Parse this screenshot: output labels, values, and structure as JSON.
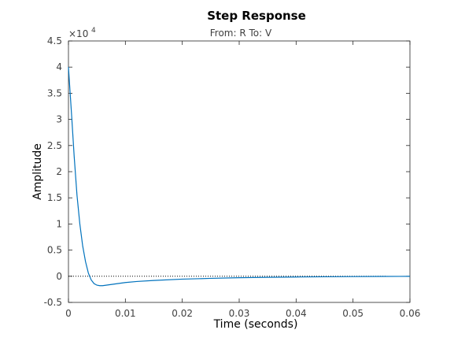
{
  "chart_data": {
    "type": "line",
    "title": "Step Response",
    "subtitle": "From: R  To: V",
    "xlabel": "Time (seconds)",
    "ylabel": "Amplitude",
    "y_scale_note": {
      "base": "×10",
      "exponent": "4"
    },
    "xlim": [
      0,
      0.06
    ],
    "ylim": [
      -0.5,
      4.5
    ],
    "x_ticks": [
      0,
      0.01,
      0.02,
      0.03,
      0.04,
      0.05,
      0.06
    ],
    "x_tick_labels": [
      "0",
      "0.01",
      "0.02",
      "0.03",
      "0.04",
      "0.05",
      "0.06"
    ],
    "y_ticks": [
      -0.5,
      0,
      0.5,
      1,
      1.5,
      2,
      2.5,
      3,
      3.5,
      4,
      4.5
    ],
    "y_tick_labels": [
      "-0.5",
      "0",
      "0.5",
      "1",
      "1.5",
      "2",
      "2.5",
      "3",
      "3.5",
      "4",
      "4.5"
    ],
    "grid": false,
    "reference_line": {
      "y": 0,
      "style": "dotted",
      "x_end": 0.056
    },
    "series": [
      {
        "color": "#0072BD",
        "x": [
          0,
          0.0003,
          0.0006,
          0.001,
          0.0015,
          0.002,
          0.0025,
          0.003,
          0.0035,
          0.004,
          0.0045,
          0.005,
          0.0055,
          0.006,
          0.007,
          0.008,
          0.009,
          0.01,
          0.012,
          0.015,
          0.02,
          0.025,
          0.03,
          0.035,
          0.04,
          0.045,
          0.05,
          0.055,
          0.06
        ],
        "y": [
          4.0,
          3.5,
          3.0,
          2.3,
          1.55,
          1.0,
          0.58,
          0.28,
          0.06,
          -0.07,
          -0.14,
          -0.17,
          -0.18,
          -0.18,
          -0.165,
          -0.15,
          -0.135,
          -0.12,
          -0.1,
          -0.08,
          -0.055,
          -0.04,
          -0.028,
          -0.02,
          -0.014,
          -0.01,
          -0.006,
          -0.003,
          -0.001
        ]
      }
    ],
    "axis_color": "#262626"
  }
}
